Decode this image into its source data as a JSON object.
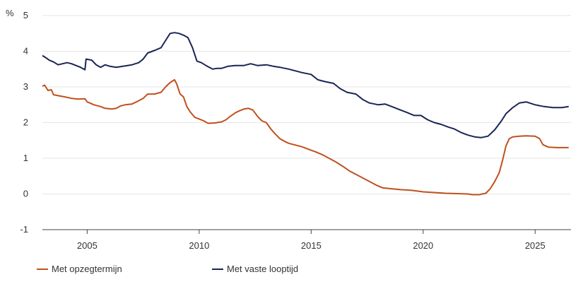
{
  "chart_data": {
    "type": "line",
    "ylabel": "%",
    "ylim": [
      -1,
      5
    ],
    "yticks": [
      -1,
      0,
      1,
      2,
      3,
      4,
      5
    ],
    "xlim": [
      2003.0,
      2026.6
    ],
    "xticks": [
      2005,
      2010,
      2015,
      2020,
      2025
    ],
    "grid": "horizontal",
    "legend_position": "bottom-left",
    "series": [
      {
        "name": "Met opzegtermijn",
        "color": "#c0501e",
        "points": [
          [
            2003.0,
            3.02
          ],
          [
            2003.1,
            3.05
          ],
          [
            2003.25,
            2.9
          ],
          [
            2003.4,
            2.92
          ],
          [
            2003.5,
            2.78
          ],
          [
            2004.0,
            2.72
          ],
          [
            2004.3,
            2.68
          ],
          [
            2004.6,
            2.66
          ],
          [
            2004.9,
            2.67
          ],
          [
            2005.0,
            2.58
          ],
          [
            2005.3,
            2.5
          ],
          [
            2005.6,
            2.45
          ],
          [
            2005.8,
            2.4
          ],
          [
            2006.1,
            2.38
          ],
          [
            2006.3,
            2.4
          ],
          [
            2006.5,
            2.47
          ],
          [
            2006.7,
            2.5
          ],
          [
            2007.0,
            2.52
          ],
          [
            2007.2,
            2.58
          ],
          [
            2007.5,
            2.68
          ],
          [
            2007.7,
            2.8
          ],
          [
            2008.0,
            2.8
          ],
          [
            2008.3,
            2.85
          ],
          [
            2008.5,
            3.0
          ],
          [
            2008.7,
            3.12
          ],
          [
            2008.9,
            3.2
          ],
          [
            2009.0,
            3.08
          ],
          [
            2009.15,
            2.8
          ],
          [
            2009.3,
            2.72
          ],
          [
            2009.45,
            2.45
          ],
          [
            2009.6,
            2.3
          ],
          [
            2009.8,
            2.15
          ],
          [
            2010.0,
            2.1
          ],
          [
            2010.2,
            2.05
          ],
          [
            2010.4,
            1.98
          ],
          [
            2010.7,
            1.99
          ],
          [
            2011.0,
            2.02
          ],
          [
            2011.2,
            2.08
          ],
          [
            2011.4,
            2.18
          ],
          [
            2011.6,
            2.27
          ],
          [
            2011.8,
            2.33
          ],
          [
            2012.0,
            2.38
          ],
          [
            2012.2,
            2.4
          ],
          [
            2012.4,
            2.35
          ],
          [
            2012.6,
            2.18
          ],
          [
            2012.8,
            2.05
          ],
          [
            2013.0,
            2.0
          ],
          [
            2013.2,
            1.82
          ],
          [
            2013.4,
            1.68
          ],
          [
            2013.6,
            1.55
          ],
          [
            2013.8,
            1.48
          ],
          [
            2014.0,
            1.42
          ],
          [
            2014.3,
            1.37
          ],
          [
            2014.6,
            1.32
          ],
          [
            2014.9,
            1.25
          ],
          [
            2015.2,
            1.18
          ],
          [
            2015.5,
            1.1
          ],
          [
            2015.8,
            1.0
          ],
          [
            2016.1,
            0.9
          ],
          [
            2016.4,
            0.78
          ],
          [
            2016.7,
            0.65
          ],
          [
            2017.0,
            0.55
          ],
          [
            2017.3,
            0.45
          ],
          [
            2017.6,
            0.35
          ],
          [
            2017.9,
            0.25
          ],
          [
            2018.2,
            0.17
          ],
          [
            2018.5,
            0.15
          ],
          [
            2019.0,
            0.12
          ],
          [
            2019.5,
            0.1
          ],
          [
            2020.0,
            0.06
          ],
          [
            2020.5,
            0.04
          ],
          [
            2021.0,
            0.02
          ],
          [
            2021.5,
            0.01
          ],
          [
            2022.0,
            0.0
          ],
          [
            2022.2,
            -0.02
          ],
          [
            2022.5,
            -0.02
          ],
          [
            2022.8,
            0.02
          ],
          [
            2023.0,
            0.15
          ],
          [
            2023.2,
            0.35
          ],
          [
            2023.4,
            0.6
          ],
          [
            2023.55,
            0.95
          ],
          [
            2023.7,
            1.35
          ],
          [
            2023.85,
            1.55
          ],
          [
            2024.0,
            1.6
          ],
          [
            2024.3,
            1.62
          ],
          [
            2024.6,
            1.63
          ],
          [
            2025.0,
            1.62
          ],
          [
            2025.2,
            1.55
          ],
          [
            2025.35,
            1.38
          ],
          [
            2025.6,
            1.31
          ],
          [
            2026.0,
            1.3
          ],
          [
            2026.5,
            1.3
          ]
        ]
      },
      {
        "name": "Met vaste looptijd",
        "color": "#1a2557",
        "points": [
          [
            2003.0,
            3.88
          ],
          [
            2003.15,
            3.82
          ],
          [
            2003.3,
            3.75
          ],
          [
            2003.5,
            3.7
          ],
          [
            2003.7,
            3.62
          ],
          [
            2003.9,
            3.65
          ],
          [
            2004.1,
            3.68
          ],
          [
            2004.3,
            3.65
          ],
          [
            2004.5,
            3.6
          ],
          [
            2004.7,
            3.55
          ],
          [
            2004.9,
            3.48
          ],
          [
            2004.95,
            3.78
          ],
          [
            2005.2,
            3.75
          ],
          [
            2005.4,
            3.62
          ],
          [
            2005.6,
            3.55
          ],
          [
            2005.8,
            3.62
          ],
          [
            2006.0,
            3.58
          ],
          [
            2006.3,
            3.55
          ],
          [
            2006.6,
            3.58
          ],
          [
            2007.0,
            3.62
          ],
          [
            2007.3,
            3.68
          ],
          [
            2007.5,
            3.78
          ],
          [
            2007.7,
            3.95
          ],
          [
            2008.0,
            4.02
          ],
          [
            2008.3,
            4.1
          ],
          [
            2008.5,
            4.3
          ],
          [
            2008.7,
            4.5
          ],
          [
            2008.9,
            4.52
          ],
          [
            2009.1,
            4.5
          ],
          [
            2009.3,
            4.45
          ],
          [
            2009.5,
            4.38
          ],
          [
            2009.7,
            4.1
          ],
          [
            2009.9,
            3.72
          ],
          [
            2010.1,
            3.68
          ],
          [
            2010.3,
            3.6
          ],
          [
            2010.6,
            3.5
          ],
          [
            2010.8,
            3.52
          ],
          [
            2011.0,
            3.52
          ],
          [
            2011.3,
            3.58
          ],
          [
            2011.6,
            3.6
          ],
          [
            2012.0,
            3.6
          ],
          [
            2012.3,
            3.65
          ],
          [
            2012.6,
            3.6
          ],
          [
            2013.0,
            3.62
          ],
          [
            2013.3,
            3.58
          ],
          [
            2013.6,
            3.55
          ],
          [
            2014.0,
            3.5
          ],
          [
            2014.3,
            3.45
          ],
          [
            2014.6,
            3.4
          ],
          [
            2015.0,
            3.35
          ],
          [
            2015.3,
            3.2
          ],
          [
            2015.6,
            3.15
          ],
          [
            2016.0,
            3.1
          ],
          [
            2016.3,
            2.95
          ],
          [
            2016.6,
            2.85
          ],
          [
            2017.0,
            2.8
          ],
          [
            2017.3,
            2.65
          ],
          [
            2017.6,
            2.55
          ],
          [
            2018.0,
            2.5
          ],
          [
            2018.3,
            2.52
          ],
          [
            2018.6,
            2.45
          ],
          [
            2019.0,
            2.35
          ],
          [
            2019.3,
            2.28
          ],
          [
            2019.6,
            2.2
          ],
          [
            2019.9,
            2.2
          ],
          [
            2020.2,
            2.08
          ],
          [
            2020.5,
            2.0
          ],
          [
            2020.8,
            1.95
          ],
          [
            2021.1,
            1.88
          ],
          [
            2021.4,
            1.82
          ],
          [
            2021.7,
            1.72
          ],
          [
            2022.0,
            1.65
          ],
          [
            2022.3,
            1.6
          ],
          [
            2022.6,
            1.58
          ],
          [
            2022.9,
            1.62
          ],
          [
            2023.2,
            1.8
          ],
          [
            2023.5,
            2.05
          ],
          [
            2023.7,
            2.25
          ],
          [
            2024.0,
            2.42
          ],
          [
            2024.3,
            2.55
          ],
          [
            2024.6,
            2.58
          ],
          [
            2025.0,
            2.5
          ],
          [
            2025.4,
            2.45
          ],
          [
            2025.8,
            2.42
          ],
          [
            2026.2,
            2.42
          ],
          [
            2026.5,
            2.45
          ]
        ]
      }
    ]
  }
}
